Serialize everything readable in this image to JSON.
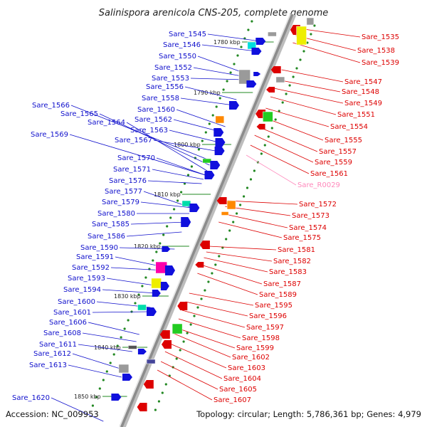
{
  "title": "Salinispora arenicola CNS-205, complete genome",
  "footer": {
    "accession": "Accession: NC_009953",
    "summary": "Topology: circular; Length: 5,786,361 bp; Genes: 4,979"
  },
  "colors": {
    "reverse_strand": "#1010cc",
    "forward_strand": "#dd0000",
    "rna": "#ff88bb",
    "backbone": "#8c8c8c"
  },
  "kbp_ticks": [
    "1780 kbp",
    "1790 kbp",
    "1800 kbp",
    "1810 kbp",
    "1820 kbp",
    "1830 kbp",
    "1840 kbp",
    "1850 kbp"
  ],
  "left_labels": [
    "Sare_1545",
    "Sare_1546",
    "Sare_1550",
    "Sare_1552",
    "Sare_1553",
    "Sare_1556",
    "Sare_1558",
    "Sare_1560",
    "Sare_1562",
    "Sare_1563",
    "Sare_1566",
    "Sare_1565",
    "Sare_1564",
    "Sare_1569",
    "Sare_1567",
    "Sare_1570",
    "Sare_1571",
    "Sare_1576",
    "Sare_1577",
    "Sare_1579",
    "Sare_1580",
    "Sare_1585",
    "Sare_1586",
    "Sare_1590",
    "Sare_1591",
    "Sare_1592",
    "Sare_1593",
    "Sare_1594",
    "Sare_1600",
    "Sare_1601",
    "Sare_1606",
    "Sare_1608",
    "Sare_1611",
    "Sare_1612",
    "Sare_1613",
    "Sare_1620"
  ],
  "right_labels": [
    "Sare_1535",
    "Sare_1538",
    "Sare_1539",
    "Sare_1547",
    "Sare_1548",
    "Sare_1549",
    "Sare_1551",
    "Sare_1554",
    "Sare_1555",
    "Sare_1557",
    "Sare_1559",
    "Sare_1561",
    "Sare_R0029",
    "Sare_1572",
    "Sare_1573",
    "Sare_1574",
    "Sare_1575",
    "Sare_1581",
    "Sare_1582",
    "Sare_1583",
    "Sare_1587",
    "Sare_1589",
    "Sare_1595",
    "Sare_1596",
    "Sare_1597",
    "Sare_1598",
    "Sare_1599",
    "Sare_1602",
    "Sare_1603",
    "Sare_1604",
    "Sare_1605",
    "Sare_1607"
  ],
  "rna_labels": [
    "Sare_R0029"
  ],
  "feature_colors": [
    "#1010dd",
    "#dd0000",
    "#00dddd",
    "#ff8800",
    "#22cc22",
    "#ff00aa",
    "#eeee00",
    "#00ddaa",
    "#9a9a9a",
    "#555555",
    "#444499"
  ]
}
